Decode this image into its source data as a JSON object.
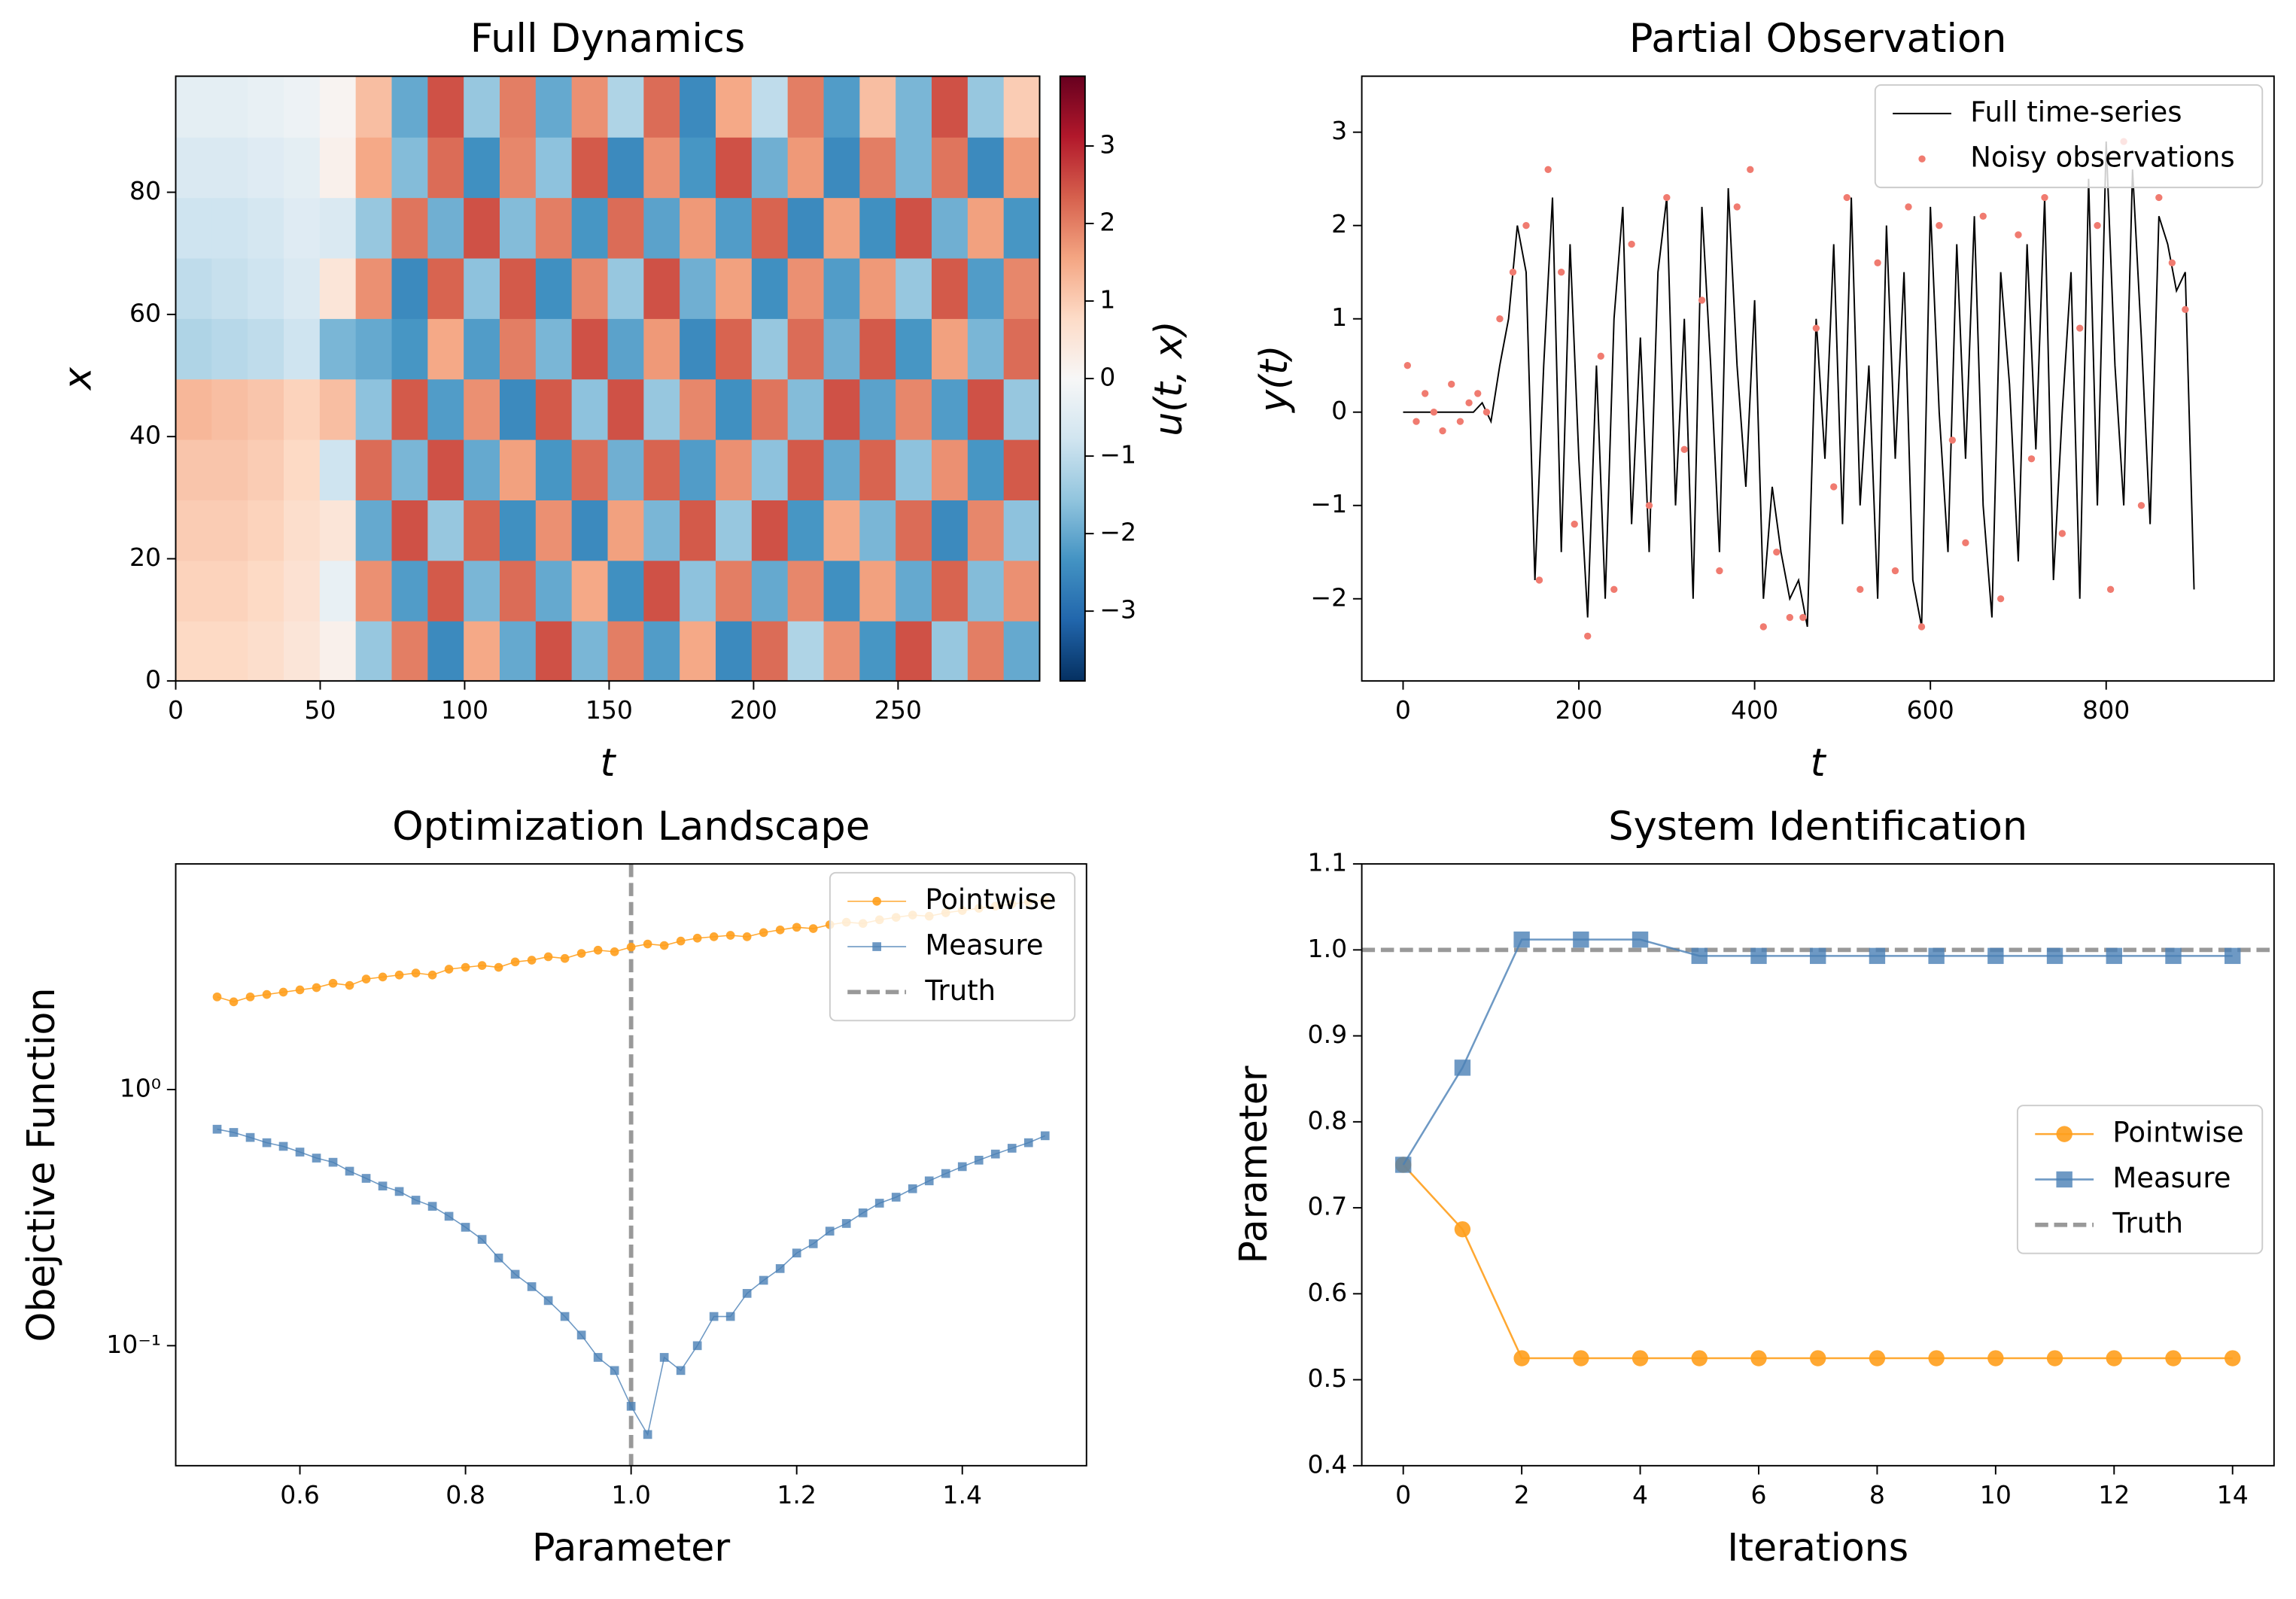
{
  "chart_data": [
    {
      "type": "heatmap",
      "title": "Full Dynamics",
      "x_label": "t",
      "y_label": "x",
      "xlim": [
        0,
        299
      ],
      "ylim": [
        0,
        99
      ],
      "xticks": [
        0,
        50,
        100,
        150,
        200,
        250
      ],
      "yticks": [
        0,
        20,
        40,
        60,
        80
      ],
      "colormap": [
        "#053061",
        "#2166ac",
        "#4393c3",
        "#92c5de",
        "#d1e5f0",
        "#f7f7f7",
        "#fddbc7",
        "#f4a582",
        "#d6604d",
        "#b2182b",
        "#67001f"
      ],
      "colorbar": {
        "label": "u(t, x)",
        "lim": [
          -3.9,
          3.9
        ],
        "ticks": [
          {
            "value": -3,
            "label": "−3"
          },
          {
            "value": -2,
            "label": "−2"
          },
          {
            "value": -1,
            "label": "−1"
          },
          0,
          1,
          2,
          3
        ]
      },
      "z": [
        [
          0.8,
          0.8,
          0.7,
          0.5,
          0.2,
          -1.5,
          2,
          -2.5,
          1.5,
          -2,
          2.5,
          -1.8,
          2,
          -2.2,
          1.5,
          -2.5,
          2.2,
          -1.2,
          1.8,
          -2.3,
          2.5,
          -1.5,
          2,
          -2
        ],
        [
          0.9,
          0.9,
          0.8,
          0.6,
          -0.3,
          1.8,
          -2.2,
          2.4,
          -1.8,
          2.2,
          -2,
          1.5,
          -2.4,
          2.5,
          -1.6,
          2,
          -2,
          1.9,
          -2.4,
          1.6,
          -2,
          2.3,
          -1.7,
          1.8
        ],
        [
          1,
          1,
          0.9,
          0.7,
          0.5,
          -2,
          2.5,
          -1.5,
          2.3,
          -2.4,
          1.8,
          -2.5,
          1.6,
          -1.8,
          2.4,
          -1.5,
          2.5,
          -2.3,
          1.5,
          -1.8,
          2.2,
          -2.5,
          1.9,
          -1.6
        ],
        [
          1.1,
          1.1,
          1,
          0.8,
          -0.8,
          2.2,
          -1.8,
          2.5,
          -2,
          1.6,
          -2.3,
          2.2,
          -1.9,
          2.3,
          -2.2,
          1.8,
          -1.6,
          2.4,
          -2,
          2.3,
          -1.6,
          1.8,
          -2.3,
          2.4
        ],
        [
          1.3,
          1.2,
          1.1,
          0.9,
          1.2,
          -1.6,
          2.4,
          -2.2,
          1.8,
          -2.5,
          2.4,
          -1.6,
          2.5,
          -1.5,
          1.9,
          -2.4,
          2.1,
          -1.7,
          2.5,
          -2.1,
          1.9,
          -2.2,
          2.5,
          -1.5
        ],
        [
          -1.2,
          -1.1,
          -1,
          -0.8,
          -1.8,
          -2,
          -2.3,
          1.5,
          -2.2,
          2,
          -1.8,
          2.5,
          -2.1,
          1.7,
          -2.5,
          2.3,
          -1.5,
          2.2,
          -1.9,
          2.4,
          -2.3,
          1.6,
          -1.8,
          2.2
        ],
        [
          -1,
          -0.9,
          -0.8,
          -0.6,
          0.5,
          1.8,
          -2.5,
          2.3,
          -1.6,
          2.4,
          -2.4,
          1.9,
          -1.5,
          2.5,
          -1.9,
          1.6,
          -2.4,
          1.8,
          -2.2,
          1.7,
          -1.5,
          2.4,
          -2.2,
          1.9
        ],
        [
          -0.8,
          -0.8,
          -0.7,
          -0.5,
          -0.6,
          -1.5,
          2.1,
          -1.9,
          2.5,
          -1.7,
          2,
          -2.3,
          2.2,
          -2.1,
          1.7,
          -2.2,
          2.3,
          -2.5,
          1.6,
          -2.4,
          2.5,
          -1.9,
          1.6,
          -2.3
        ],
        [
          -0.6,
          -0.6,
          -0.5,
          -0.4,
          0.2,
          1.5,
          -1.7,
          2.2,
          -2.4,
          1.9,
          -1.6,
          2.4,
          -2.5,
          1.8,
          -2.3,
          2.5,
          -1.9,
          1.7,
          -2.5,
          2,
          -1.8,
          2.1,
          -2.5,
          1.7
        ],
        [
          -0.4,
          -0.4,
          -0.3,
          -0.2,
          0.1,
          1.2,
          -2,
          2.5,
          -1.5,
          2,
          -2,
          1.8,
          -1.2,
          2.2,
          -2.5,
          1.5,
          -1,
          2,
          -2.2,
          1.2,
          -1.8,
          2.5,
          -1.5,
          1
        ]
      ]
    },
    {
      "type": "line",
      "title": "Partial Observation",
      "x_label": "t",
      "y_label": "y(t)",
      "xlim": [
        -47,
        991
      ],
      "ylim": [
        -2.88,
        3.6
      ],
      "xticks": [
        0,
        200,
        400,
        600,
        800
      ],
      "yticks": [
        {
          "value": -2,
          "label": "−2"
        },
        {
          "value": -1,
          "label": "−1"
        },
        0,
        1,
        2,
        3
      ],
      "legend": "upper right",
      "x": [
        0,
        10,
        20,
        30,
        40,
        50,
        60,
        70,
        80,
        90,
        100,
        110,
        120,
        130,
        140,
        150,
        160,
        170,
        180,
        190,
        200,
        210,
        220,
        230,
        240,
        250,
        260,
        270,
        280,
        290,
        300,
        310,
        320,
        330,
        340,
        350,
        360,
        370,
        380,
        390,
        400,
        410,
        420,
        430,
        440,
        450,
        460,
        470,
        480,
        490,
        500,
        510,
        520,
        530,
        540,
        550,
        560,
        570,
        580,
        590,
        600,
        610,
        620,
        630,
        640,
        650,
        660,
        670,
        680,
        690,
        700,
        710,
        720,
        730,
        740,
        750,
        760,
        770,
        780,
        790,
        800,
        810,
        820,
        830,
        840,
        850,
        860,
        870,
        880,
        890,
        900
      ],
      "series": [
        {
          "name": "Full time-series",
          "color": "#000000",
          "style": "line",
          "alpha": 1,
          "values": [
            0,
            0,
            0,
            0,
            0,
            0,
            0,
            0,
            0,
            0.1,
            -0.1,
            0.5,
            1,
            2,
            1.5,
            -1.8,
            0.5,
            2.3,
            -1.5,
            1.8,
            -0.5,
            -2.2,
            0.5,
            -2,
            1,
            2.2,
            -1.2,
            0.8,
            -1.5,
            1.5,
            2.3,
            -1,
            1,
            -2,
            2.2,
            0.5,
            -1.5,
            2.4,
            0.5,
            -0.8,
            1.2,
            -2,
            -0.8,
            -1.5,
            -2,
            -1.8,
            -2.3,
            1,
            -0.5,
            1.8,
            -1.2,
            2.3,
            -1,
            0.5,
            -2,
            2,
            -0.5,
            1.5,
            -1.8,
            -2.3,
            2.2,
            0,
            -1.5,
            1.8,
            -0.5,
            2.1,
            -1,
            -2.2,
            1.5,
            0.3,
            -1.6,
            1.8,
            -0.4,
            2.3,
            -1.8,
            0,
            1.5,
            -2,
            2.5,
            -1,
            2.9,
            0.5,
            -1,
            2.6,
            0.8,
            -1.2,
            2.1,
            1.8,
            1.3,
            1.5,
            -1.9
          ]
        },
        {
          "name": "Noisy observations",
          "color": "#f07b70",
          "style": "scatter",
          "alpha": 1,
          "x": [
            5,
            15,
            25,
            35,
            45,
            55,
            65,
            75,
            85,
            95,
            110,
            125,
            140,
            155,
            165,
            180,
            195,
            210,
            225,
            240,
            260,
            280,
            300,
            320,
            340,
            360,
            380,
            395,
            410,
            425,
            440,
            455,
            470,
            490,
            505,
            520,
            540,
            560,
            575,
            590,
            610,
            625,
            640,
            660,
            680,
            700,
            715,
            730,
            750,
            770,
            790,
            805,
            820,
            840,
            860,
            875,
            890
          ],
          "values": [
            0.5,
            -0.1,
            0.2,
            0,
            -0.2,
            0.3,
            -0.1,
            0.1,
            0.2,
            0,
            1,
            1.5,
            2,
            -1.8,
            2.6,
            1.5,
            -1.2,
            -2.4,
            0.6,
            -1.9,
            1.8,
            -1,
            2.3,
            -0.4,
            1.2,
            -1.7,
            2.2,
            2.6,
            -2.3,
            -1.5,
            -2.2,
            -2.2,
            0.9,
            -0.8,
            2.3,
            -1.9,
            1.6,
            -1.7,
            2.2,
            -2.3,
            2,
            -0.3,
            -1.4,
            2.1,
            -2,
            1.9,
            -0.5,
            2.3,
            -1.3,
            0.9,
            2,
            -1.9,
            2.9,
            -1,
            2.3,
            1.6,
            1.1
          ]
        }
      ]
    },
    {
      "type": "line",
      "title": "Optimization Landscape",
      "x_label": "Parameter",
      "y_label": "Obejctive Function",
      "log_y": true,
      "xlim": [
        0.45,
        1.55
      ],
      "ylim": [
        0.034,
        7.6
      ],
      "xticks": [
        0.6,
        0.8,
        {
          "value": 1,
          "label": "1.0"
        },
        1.2,
        1.4
      ],
      "yticks": [
        {
          "value": 0.1,
          "label": "10⁻¹"
        },
        {
          "value": 1,
          "label": "10⁰"
        }
      ],
      "legend": "upper right",
      "x": [
        0.5,
        0.52,
        0.54,
        0.56,
        0.58,
        0.6,
        0.62,
        0.64,
        0.66,
        0.68,
        0.7,
        0.72,
        0.74,
        0.76,
        0.78,
        0.8,
        0.82,
        0.84,
        0.86,
        0.88,
        0.9,
        0.92,
        0.94,
        0.96,
        0.98,
        1,
        1.02,
        1.04,
        1.06,
        1.08,
        1.1,
        1.12,
        1.14,
        1.16,
        1.18,
        1.2,
        1.22,
        1.24,
        1.26,
        1.28,
        1.3,
        1.32,
        1.34,
        1.36,
        1.38,
        1.4,
        1.42,
        1.44,
        1.46,
        1.48,
        1.5
      ],
      "series": [
        {
          "name": "Pointwise",
          "color": "#ff9f1c",
          "style": "line+marker",
          "marker": "o",
          "alpha": 0.9,
          "values": [
            2.3,
            2.2,
            2.3,
            2.35,
            2.4,
            2.45,
            2.5,
            2.6,
            2.55,
            2.7,
            2.75,
            2.8,
            2.85,
            2.8,
            2.95,
            3,
            3.05,
            3,
            3.15,
            3.2,
            3.3,
            3.25,
            3.4,
            3.5,
            3.45,
            3.6,
            3.7,
            3.65,
            3.8,
            3.9,
            3.95,
            4,
            3.95,
            4.1,
            4.2,
            4.3,
            4.25,
            4.4,
            4.5,
            4.45,
            4.6,
            4.7,
            4.8,
            4.75,
            4.9,
            5,
            5.1,
            5.2,
            5.3,
            5.4,
            5.5
          ]
        },
        {
          "name": "Measure",
          "color": "#4a7fb5",
          "style": "line+marker",
          "marker": "s",
          "alpha": 0.8,
          "values": [
            0.7,
            0.68,
            0.65,
            0.62,
            0.6,
            0.57,
            0.54,
            0.52,
            0.48,
            0.45,
            0.42,
            0.4,
            0.37,
            0.35,
            0.32,
            0.29,
            0.26,
            0.22,
            0.19,
            0.17,
            0.15,
            0.13,
            0.11,
            0.09,
            0.08,
            0.058,
            0.045,
            0.09,
            0.08,
            0.1,
            0.13,
            0.13,
            0.16,
            0.18,
            0.2,
            0.23,
            0.25,
            0.28,
            0.3,
            0.33,
            0.36,
            0.38,
            0.41,
            0.44,
            0.47,
            0.5,
            0.53,
            0.56,
            0.59,
            0.62,
            0.66
          ]
        }
      ],
      "reference_lines": [
        {
          "name": "Truth",
          "orientation": "vertical",
          "value": 1,
          "color": "#999999"
        }
      ]
    },
    {
      "type": "line",
      "title": "System Identification",
      "x_label": "Iterations",
      "y_label": "Parameter",
      "xlim": [
        -0.7,
        14.7
      ],
      "ylim": [
        0.4,
        1.1
      ],
      "xticks": [
        0,
        2,
        4,
        6,
        8,
        10,
        12,
        14
      ],
      "yticks": [
        0.4,
        0.5,
        0.6,
        0.7,
        0.8,
        0.9,
        {
          "value": 1,
          "label": "1.0"
        },
        1.1
      ],
      "legend": "center right",
      "x": [
        0,
        1,
        2,
        3,
        4,
        5,
        6,
        7,
        8,
        9,
        10,
        11,
        12,
        13,
        14
      ],
      "series": [
        {
          "name": "Pointwise",
          "color": "#ff9f1c",
          "style": "line+marker",
          "marker": "o",
          "alpha": 0.9,
          "values": [
            0.75,
            0.675,
            0.525,
            0.525,
            0.525,
            0.525,
            0.525,
            0.525,
            0.525,
            0.525,
            0.525,
            0.525,
            0.525,
            0.525,
            0.525
          ]
        },
        {
          "name": "Measure",
          "color": "#4a7fb5",
          "style": "line+marker",
          "marker": "s",
          "alpha": 0.8,
          "values": [
            0.75,
            0.863,
            1.012,
            1.012,
            1.012,
            0.993,
            0.993,
            0.993,
            0.993,
            0.993,
            0.993,
            0.993,
            0.993,
            0.993,
            0.993
          ]
        }
      ],
      "reference_lines": [
        {
          "name": "Truth",
          "orientation": "horizontal",
          "value": 1,
          "color": "#999999"
        }
      ]
    }
  ]
}
